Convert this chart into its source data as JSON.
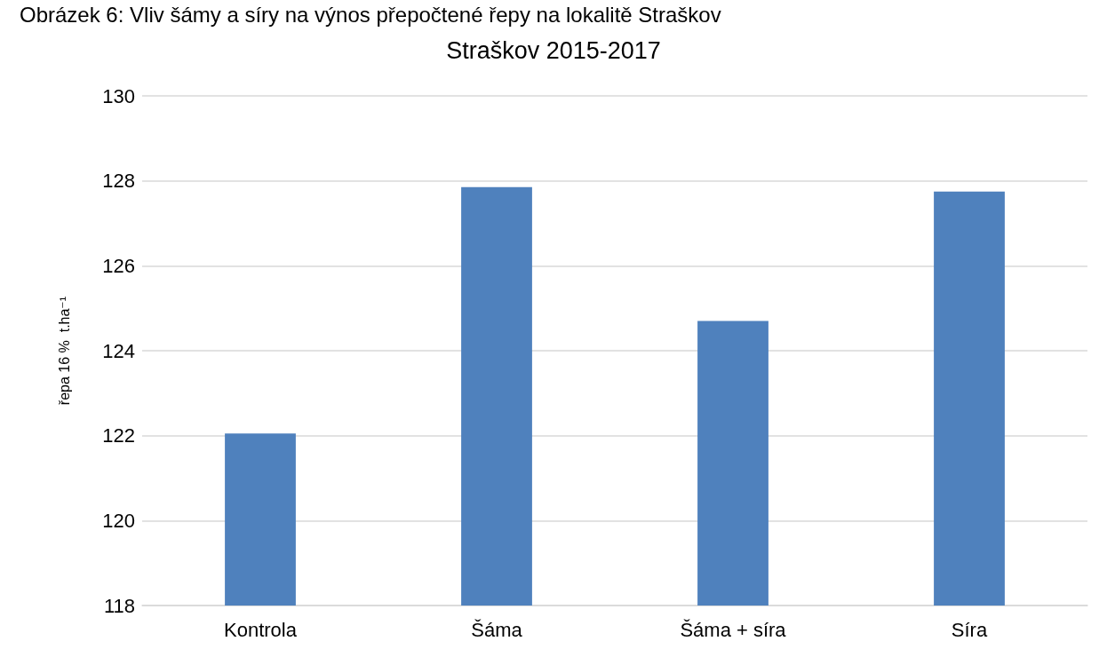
{
  "chart_data": {
    "type": "bar",
    "title": "Straškov 2015-2017",
    "annotations": [
      "Obrázek 6: Vliv šámy a síry na výnos přepočtené řepy na lokalitě Straškov"
    ],
    "ylabel": "řepa 16 %  t.ha⁻¹",
    "categories": [
      "Kontrola",
      "Šáma",
      "Šáma + síra",
      "Síra"
    ],
    "values": [
      122.05,
      127.85,
      124.7,
      127.75
    ],
    "color": "#4f81bd",
    "ylim": [
      118,
      130
    ],
    "yticks": [
      118,
      120,
      122,
      124,
      126,
      128,
      130
    ],
    "grid": "y"
  }
}
